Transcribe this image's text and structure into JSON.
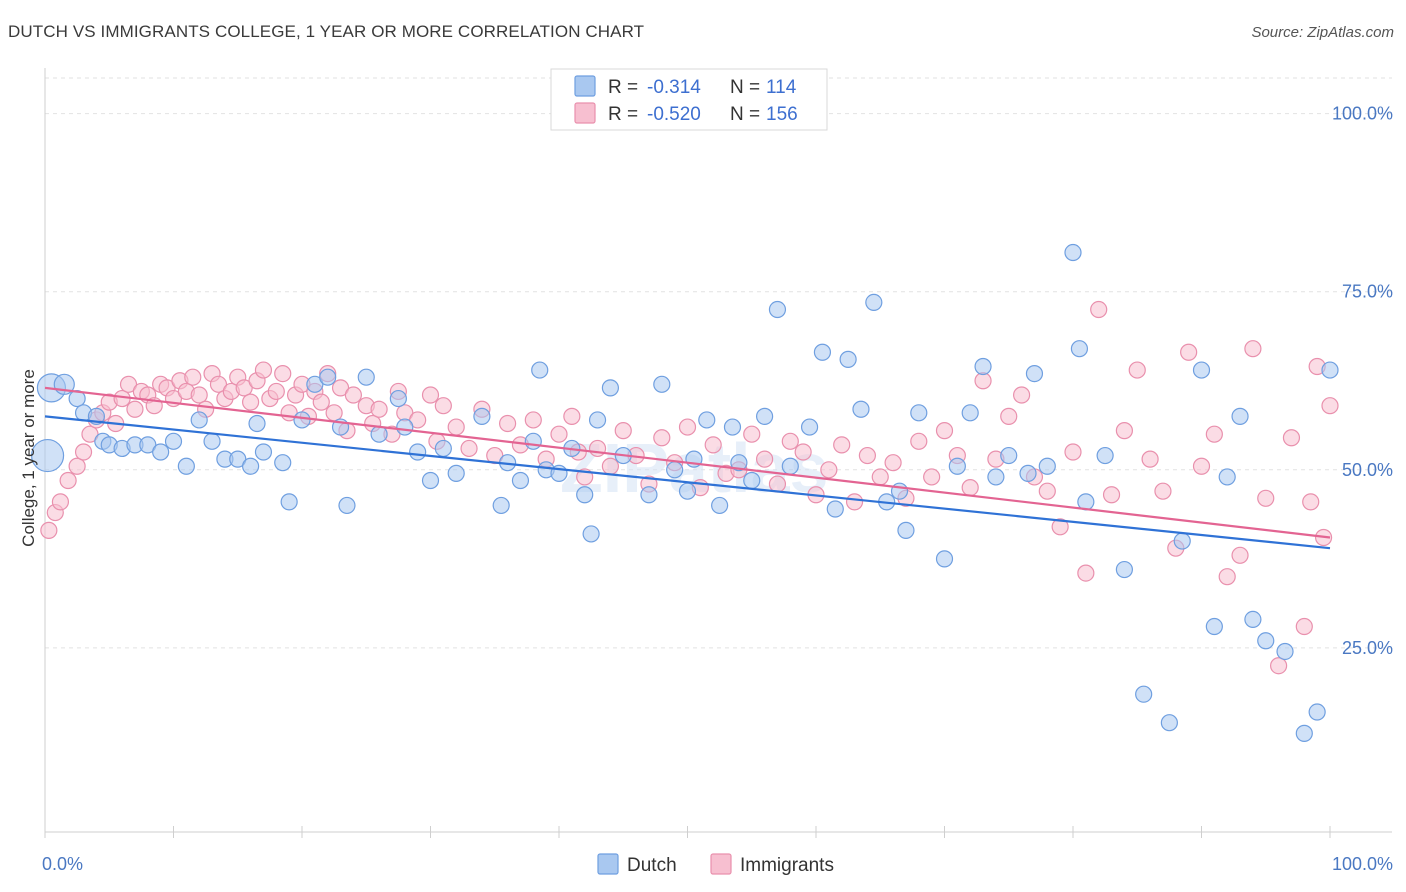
{
  "title": "DUTCH VS IMMIGRANTS COLLEGE, 1 YEAR OR MORE CORRELATION CHART",
  "source": "Source: ZipAtlas.com",
  "watermark": "ZIPatlas",
  "colors": {
    "dutch_fill": "#a9c8f0",
    "dutch_stroke": "#6f9fe0",
    "dutch_line": "#2f72d6",
    "imm_fill": "#f7bfd0",
    "imm_stroke": "#e990ad",
    "imm_line": "#e36492",
    "tick": "#4a78c2"
  },
  "legend": {
    "rows": [
      {
        "r_label": "R = ",
        "r_value": "-0.314",
        "n_label": "N = ",
        "n_value": "114",
        "series": "dutch"
      },
      {
        "r_label": "R = ",
        "r_value": "-0.520",
        "n_label": "N = ",
        "n_value": "156",
        "series": "imm"
      }
    ]
  },
  "bottom_legend": [
    {
      "label": "Dutch",
      "series": "dutch"
    },
    {
      "label": "Immigrants",
      "series": "imm"
    }
  ],
  "chart_data": {
    "type": "scatter",
    "title": "DUTCH VS IMMIGRANTS COLLEGE, 1 YEAR OR MORE CORRELATION CHART",
    "xlabel": "",
    "ylabel": "College, 1 year or more",
    "xlim": [
      0,
      100
    ],
    "ylim": [
      0,
      105
    ],
    "x_tick_labels": [
      "0.0%",
      "100.0%"
    ],
    "y_ticks": [
      25,
      50,
      75,
      100
    ],
    "y_tick_labels": [
      "25.0%",
      "50.0%",
      "75.0%",
      "100.0%"
    ],
    "grid": true,
    "legend_position": "top-center",
    "series": [
      {
        "name": "Dutch",
        "key": "dutch",
        "trend": {
          "x": [
            0,
            100
          ],
          "y": [
            57.5,
            39.0
          ]
        },
        "points": [
          [
            0.5,
            61.5,
            14
          ],
          [
            1.5,
            62.0,
            10
          ],
          [
            0.2,
            52.0,
            16
          ],
          [
            2.5,
            60.0,
            8
          ],
          [
            3.0,
            58.0,
            8
          ],
          [
            4.0,
            57.5,
            8
          ],
          [
            4.5,
            54.0,
            8
          ],
          [
            5.0,
            53.5,
            8
          ],
          [
            6.0,
            53.0,
            8
          ],
          [
            7.0,
            53.5,
            8
          ],
          [
            8.0,
            53.5,
            8
          ],
          [
            9.0,
            52.5,
            8
          ],
          [
            10.0,
            54.0,
            8
          ],
          [
            11.0,
            50.5,
            8
          ],
          [
            12.0,
            57.0,
            8
          ],
          [
            13.0,
            54.0,
            8
          ],
          [
            14.0,
            51.5,
            8
          ],
          [
            15.0,
            51.5,
            8
          ],
          [
            16.0,
            50.5,
            8
          ],
          [
            16.5,
            56.5,
            8
          ],
          [
            17.0,
            52.5,
            8
          ],
          [
            18.5,
            51.0,
            8
          ],
          [
            19.0,
            45.5,
            8
          ],
          [
            20.0,
            57.0,
            8
          ],
          [
            21.0,
            62.0,
            8
          ],
          [
            22.0,
            63.0,
            8
          ],
          [
            23.0,
            56.0,
            8
          ],
          [
            23.5,
            45.0,
            8
          ],
          [
            25.0,
            63.0,
            8
          ],
          [
            26.0,
            55.0,
            8
          ],
          [
            27.5,
            60.0,
            8
          ],
          [
            28.0,
            56.0,
            8
          ],
          [
            29.0,
            52.5,
            8
          ],
          [
            30.0,
            48.5,
            8
          ],
          [
            31.0,
            53.0,
            8
          ],
          [
            32.0,
            49.5,
            8
          ],
          [
            34.0,
            57.5,
            8
          ],
          [
            35.5,
            45.0,
            8
          ],
          [
            36.0,
            51.0,
            8
          ],
          [
            37.0,
            48.5,
            8
          ],
          [
            38.0,
            54.0,
            8
          ],
          [
            38.5,
            64.0,
            8
          ],
          [
            39.0,
            50.0,
            8
          ],
          [
            40.0,
            49.5,
            8
          ],
          [
            41.0,
            53.0,
            8
          ],
          [
            42.0,
            46.5,
            8
          ],
          [
            42.5,
            41.0,
            8
          ],
          [
            43.0,
            57.0,
            8
          ],
          [
            44.0,
            61.5,
            8
          ],
          [
            45.0,
            52.0,
            8
          ],
          [
            47.0,
            46.5,
            8
          ],
          [
            48.0,
            62.0,
            8
          ],
          [
            49.0,
            50.0,
            8
          ],
          [
            50.0,
            47.0,
            8
          ],
          [
            50.5,
            51.5,
            8
          ],
          [
            51.5,
            57.0,
            8
          ],
          [
            52.5,
            45.0,
            8
          ],
          [
            53.5,
            56.0,
            8
          ],
          [
            54.0,
            51.0,
            8
          ],
          [
            55.0,
            48.5,
            8
          ],
          [
            56.0,
            57.5,
            8
          ],
          [
            57.0,
            72.5,
            8
          ],
          [
            58.0,
            50.5,
            8
          ],
          [
            59.5,
            56.0,
            8
          ],
          [
            60.5,
            66.5,
            8
          ],
          [
            61.5,
            44.5,
            8
          ],
          [
            62.5,
            65.5,
            8
          ],
          [
            63.5,
            58.5,
            8
          ],
          [
            64.5,
            73.5,
            8
          ],
          [
            65.5,
            45.5,
            8
          ],
          [
            66.5,
            47.0,
            8
          ],
          [
            67.0,
            41.5,
            8
          ],
          [
            68.0,
            58.0,
            8
          ],
          [
            70.0,
            37.5,
            8
          ],
          [
            71.0,
            50.5,
            8
          ],
          [
            72.0,
            58.0,
            8
          ],
          [
            73.0,
            64.5,
            8
          ],
          [
            74.0,
            49.0,
            8
          ],
          [
            75.0,
            52.0,
            8
          ],
          [
            76.5,
            49.5,
            8
          ],
          [
            77.0,
            63.5,
            8
          ],
          [
            78.0,
            50.5,
            8
          ],
          [
            80.0,
            80.5,
            8
          ],
          [
            80.5,
            67.0,
            8
          ],
          [
            81.0,
            45.5,
            8
          ],
          [
            82.5,
            52.0,
            8
          ],
          [
            84.0,
            36.0,
            8
          ],
          [
            85.5,
            18.5,
            8
          ],
          [
            87.5,
            14.5,
            8
          ],
          [
            88.5,
            40.0,
            8
          ],
          [
            90.0,
            64.0,
            8
          ],
          [
            91.0,
            28.0,
            8
          ],
          [
            92.0,
            49.0,
            8
          ],
          [
            93.0,
            57.5,
            8
          ],
          [
            94.0,
            29.0,
            8
          ],
          [
            95.0,
            26.0,
            8
          ],
          [
            96.5,
            24.5,
            8
          ],
          [
            98.0,
            13.0,
            8
          ],
          [
            99.0,
            16.0,
            8
          ],
          [
            100.0,
            64.0,
            8
          ]
        ]
      },
      {
        "name": "Immigrants",
        "key": "imm",
        "trend": {
          "x": [
            0,
            100
          ],
          "y": [
            61.5,
            40.5
          ]
        },
        "points": [
          [
            0.3,
            41.5,
            8
          ],
          [
            0.8,
            44.0,
            8
          ],
          [
            1.2,
            45.5,
            8
          ],
          [
            1.8,
            48.5,
            8
          ],
          [
            2.5,
            50.5,
            8
          ],
          [
            3.0,
            52.5,
            8
          ],
          [
            3.5,
            55.0,
            8
          ],
          [
            4.0,
            57.0,
            8
          ],
          [
            4.5,
            58.0,
            8
          ],
          [
            5.0,
            59.5,
            8
          ],
          [
            5.5,
            56.5,
            8
          ],
          [
            6.0,
            60.0,
            8
          ],
          [
            6.5,
            62.0,
            8
          ],
          [
            7.0,
            58.5,
            8
          ],
          [
            7.5,
            61.0,
            8
          ],
          [
            8.0,
            60.5,
            8
          ],
          [
            8.5,
            59.0,
            8
          ],
          [
            9.0,
            62.0,
            8
          ],
          [
            9.5,
            61.5,
            8
          ],
          [
            10.0,
            60.0,
            8
          ],
          [
            10.5,
            62.5,
            8
          ],
          [
            11.0,
            61.0,
            8
          ],
          [
            11.5,
            63.0,
            8
          ],
          [
            12.0,
            60.5,
            8
          ],
          [
            12.5,
            58.5,
            8
          ],
          [
            13.0,
            63.5,
            8
          ],
          [
            13.5,
            62.0,
            8
          ],
          [
            14.0,
            60.0,
            8
          ],
          [
            14.5,
            61.0,
            8
          ],
          [
            15.0,
            63.0,
            8
          ],
          [
            15.5,
            61.5,
            8
          ],
          [
            16.0,
            59.5,
            8
          ],
          [
            16.5,
            62.5,
            8
          ],
          [
            17.0,
            64.0,
            8
          ],
          [
            17.5,
            60.0,
            8
          ],
          [
            18.0,
            61.0,
            8
          ],
          [
            18.5,
            63.5,
            8
          ],
          [
            19.0,
            58.0,
            8
          ],
          [
            19.5,
            60.5,
            8
          ],
          [
            20.0,
            62.0,
            8
          ],
          [
            20.5,
            57.5,
            8
          ],
          [
            21.0,
            61.0,
            8
          ],
          [
            21.5,
            59.5,
            8
          ],
          [
            22.0,
            63.5,
            8
          ],
          [
            22.5,
            58.0,
            8
          ],
          [
            23.0,
            61.5,
            8
          ],
          [
            23.5,
            55.5,
            8
          ],
          [
            24.0,
            60.5,
            8
          ],
          [
            25.0,
            59.0,
            8
          ],
          [
            25.5,
            56.5,
            8
          ],
          [
            26.0,
            58.5,
            8
          ],
          [
            27.0,
            55.0,
            8
          ],
          [
            27.5,
            61.0,
            8
          ],
          [
            28.0,
            58.0,
            8
          ],
          [
            29.0,
            57.0,
            8
          ],
          [
            30.0,
            60.5,
            8
          ],
          [
            30.5,
            54.0,
            8
          ],
          [
            31.0,
            59.0,
            8
          ],
          [
            32.0,
            56.0,
            8
          ],
          [
            33.0,
            53.0,
            8
          ],
          [
            34.0,
            58.5,
            8
          ],
          [
            35.0,
            52.0,
            8
          ],
          [
            36.0,
            56.5,
            8
          ],
          [
            37.0,
            53.5,
            8
          ],
          [
            38.0,
            57.0,
            8
          ],
          [
            39.0,
            51.5,
            8
          ],
          [
            40.0,
            55.0,
            8
          ],
          [
            41.0,
            57.5,
            8
          ],
          [
            41.5,
            52.5,
            8
          ],
          [
            42.0,
            49.0,
            8
          ],
          [
            43.0,
            53.0,
            8
          ],
          [
            44.0,
            50.5,
            8
          ],
          [
            45.0,
            55.5,
            8
          ],
          [
            46.0,
            52.0,
            8
          ],
          [
            47.0,
            48.0,
            8
          ],
          [
            48.0,
            54.5,
            8
          ],
          [
            49.0,
            51.0,
            8
          ],
          [
            50.0,
            56.0,
            8
          ],
          [
            51.0,
            47.5,
            8
          ],
          [
            52.0,
            53.5,
            8
          ],
          [
            53.0,
            49.5,
            8
          ],
          [
            54.0,
            50.0,
            8
          ],
          [
            55.0,
            55.0,
            8
          ],
          [
            56.0,
            51.5,
            8
          ],
          [
            57.0,
            48.0,
            8
          ],
          [
            58.0,
            54.0,
            8
          ],
          [
            59.0,
            52.5,
            8
          ],
          [
            60.0,
            46.5,
            8
          ],
          [
            61.0,
            50.0,
            8
          ],
          [
            62.0,
            53.5,
            8
          ],
          [
            63.0,
            45.5,
            8
          ],
          [
            64.0,
            52.0,
            8
          ],
          [
            65.0,
            49.0,
            8
          ],
          [
            66.0,
            51.0,
            8
          ],
          [
            67.0,
            46.0,
            8
          ],
          [
            68.0,
            54.0,
            8
          ],
          [
            69.0,
            49.0,
            8
          ],
          [
            70.0,
            55.5,
            8
          ],
          [
            71.0,
            52.0,
            8
          ],
          [
            72.0,
            47.5,
            8
          ],
          [
            73.0,
            62.5,
            8
          ],
          [
            74.0,
            51.5,
            8
          ],
          [
            75.0,
            57.5,
            8
          ],
          [
            76.0,
            60.5,
            8
          ],
          [
            77.0,
            49.0,
            8
          ],
          [
            78.0,
            47.0,
            8
          ],
          [
            79.0,
            42.0,
            8
          ],
          [
            80.0,
            52.5,
            8
          ],
          [
            81.0,
            35.5,
            8
          ],
          [
            82.0,
            72.5,
            8
          ],
          [
            83.0,
            46.5,
            8
          ],
          [
            84.0,
            55.5,
            8
          ],
          [
            85.0,
            64.0,
            8
          ],
          [
            86.0,
            51.5,
            8
          ],
          [
            87.0,
            47.0,
            8
          ],
          [
            88.0,
            39.0,
            8
          ],
          [
            89.0,
            66.5,
            8
          ],
          [
            90.0,
            50.5,
            8
          ],
          [
            91.0,
            55.0,
            8
          ],
          [
            92.0,
            35.0,
            8
          ],
          [
            93.0,
            38.0,
            8
          ],
          [
            94.0,
            67.0,
            8
          ],
          [
            95.0,
            46.0,
            8
          ],
          [
            96.0,
            22.5,
            8
          ],
          [
            97.0,
            54.5,
            8
          ],
          [
            98.0,
            28.0,
            8
          ],
          [
            98.5,
            45.5,
            8
          ],
          [
            99.0,
            64.5,
            8
          ],
          [
            99.5,
            40.5,
            8
          ],
          [
            100.0,
            59.0,
            8
          ]
        ]
      }
    ]
  }
}
